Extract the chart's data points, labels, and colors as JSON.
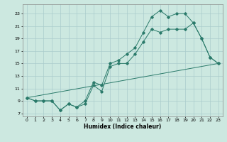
{
  "title": "",
  "xlabel": "Humidex (Indice chaleur)",
  "bg_color": "#cce8e0",
  "line_color": "#2a7a6a",
  "grid_color": "#aacccc",
  "xlim": [
    -0.5,
    23.5
  ],
  "ylim": [
    6.5,
    24.5
  ],
  "xticks": [
    0,
    1,
    2,
    3,
    4,
    5,
    6,
    7,
    8,
    9,
    10,
    11,
    12,
    13,
    14,
    15,
    16,
    17,
    18,
    19,
    20,
    21,
    22,
    23
  ],
  "yticks": [
    7,
    9,
    11,
    13,
    15,
    17,
    19,
    21,
    23
  ],
  "line1_x": [
    0,
    1,
    2,
    3,
    4,
    5,
    6,
    7,
    8,
    9,
    10,
    11,
    12,
    13,
    14,
    15,
    16,
    17,
    18,
    19,
    20,
    21,
    22,
    23
  ],
  "line1_y": [
    9.5,
    9.0,
    9.0,
    9.0,
    7.5,
    8.5,
    8.0,
    8.5,
    11.5,
    10.5,
    14.5,
    15.0,
    15.0,
    16.5,
    18.5,
    20.5,
    20.0,
    20.5,
    20.5,
    20.5,
    21.5,
    19.0,
    16.0,
    15.0
  ],
  "line2_x": [
    0,
    1,
    2,
    3,
    4,
    5,
    6,
    7,
    8,
    9,
    10,
    11,
    12,
    13,
    14,
    15,
    16,
    17,
    18,
    19,
    20,
    21,
    22,
    23
  ],
  "line2_y": [
    9.5,
    9.0,
    9.0,
    9.0,
    7.5,
    8.5,
    8.0,
    9.0,
    12.0,
    11.5,
    15.0,
    15.5,
    16.5,
    17.5,
    20.0,
    22.5,
    23.5,
    22.5,
    23.0,
    23.0,
    21.5,
    19.0,
    16.0,
    15.0
  ],
  "line3_x": [
    0,
    23
  ],
  "line3_y": [
    9.5,
    15.0
  ]
}
